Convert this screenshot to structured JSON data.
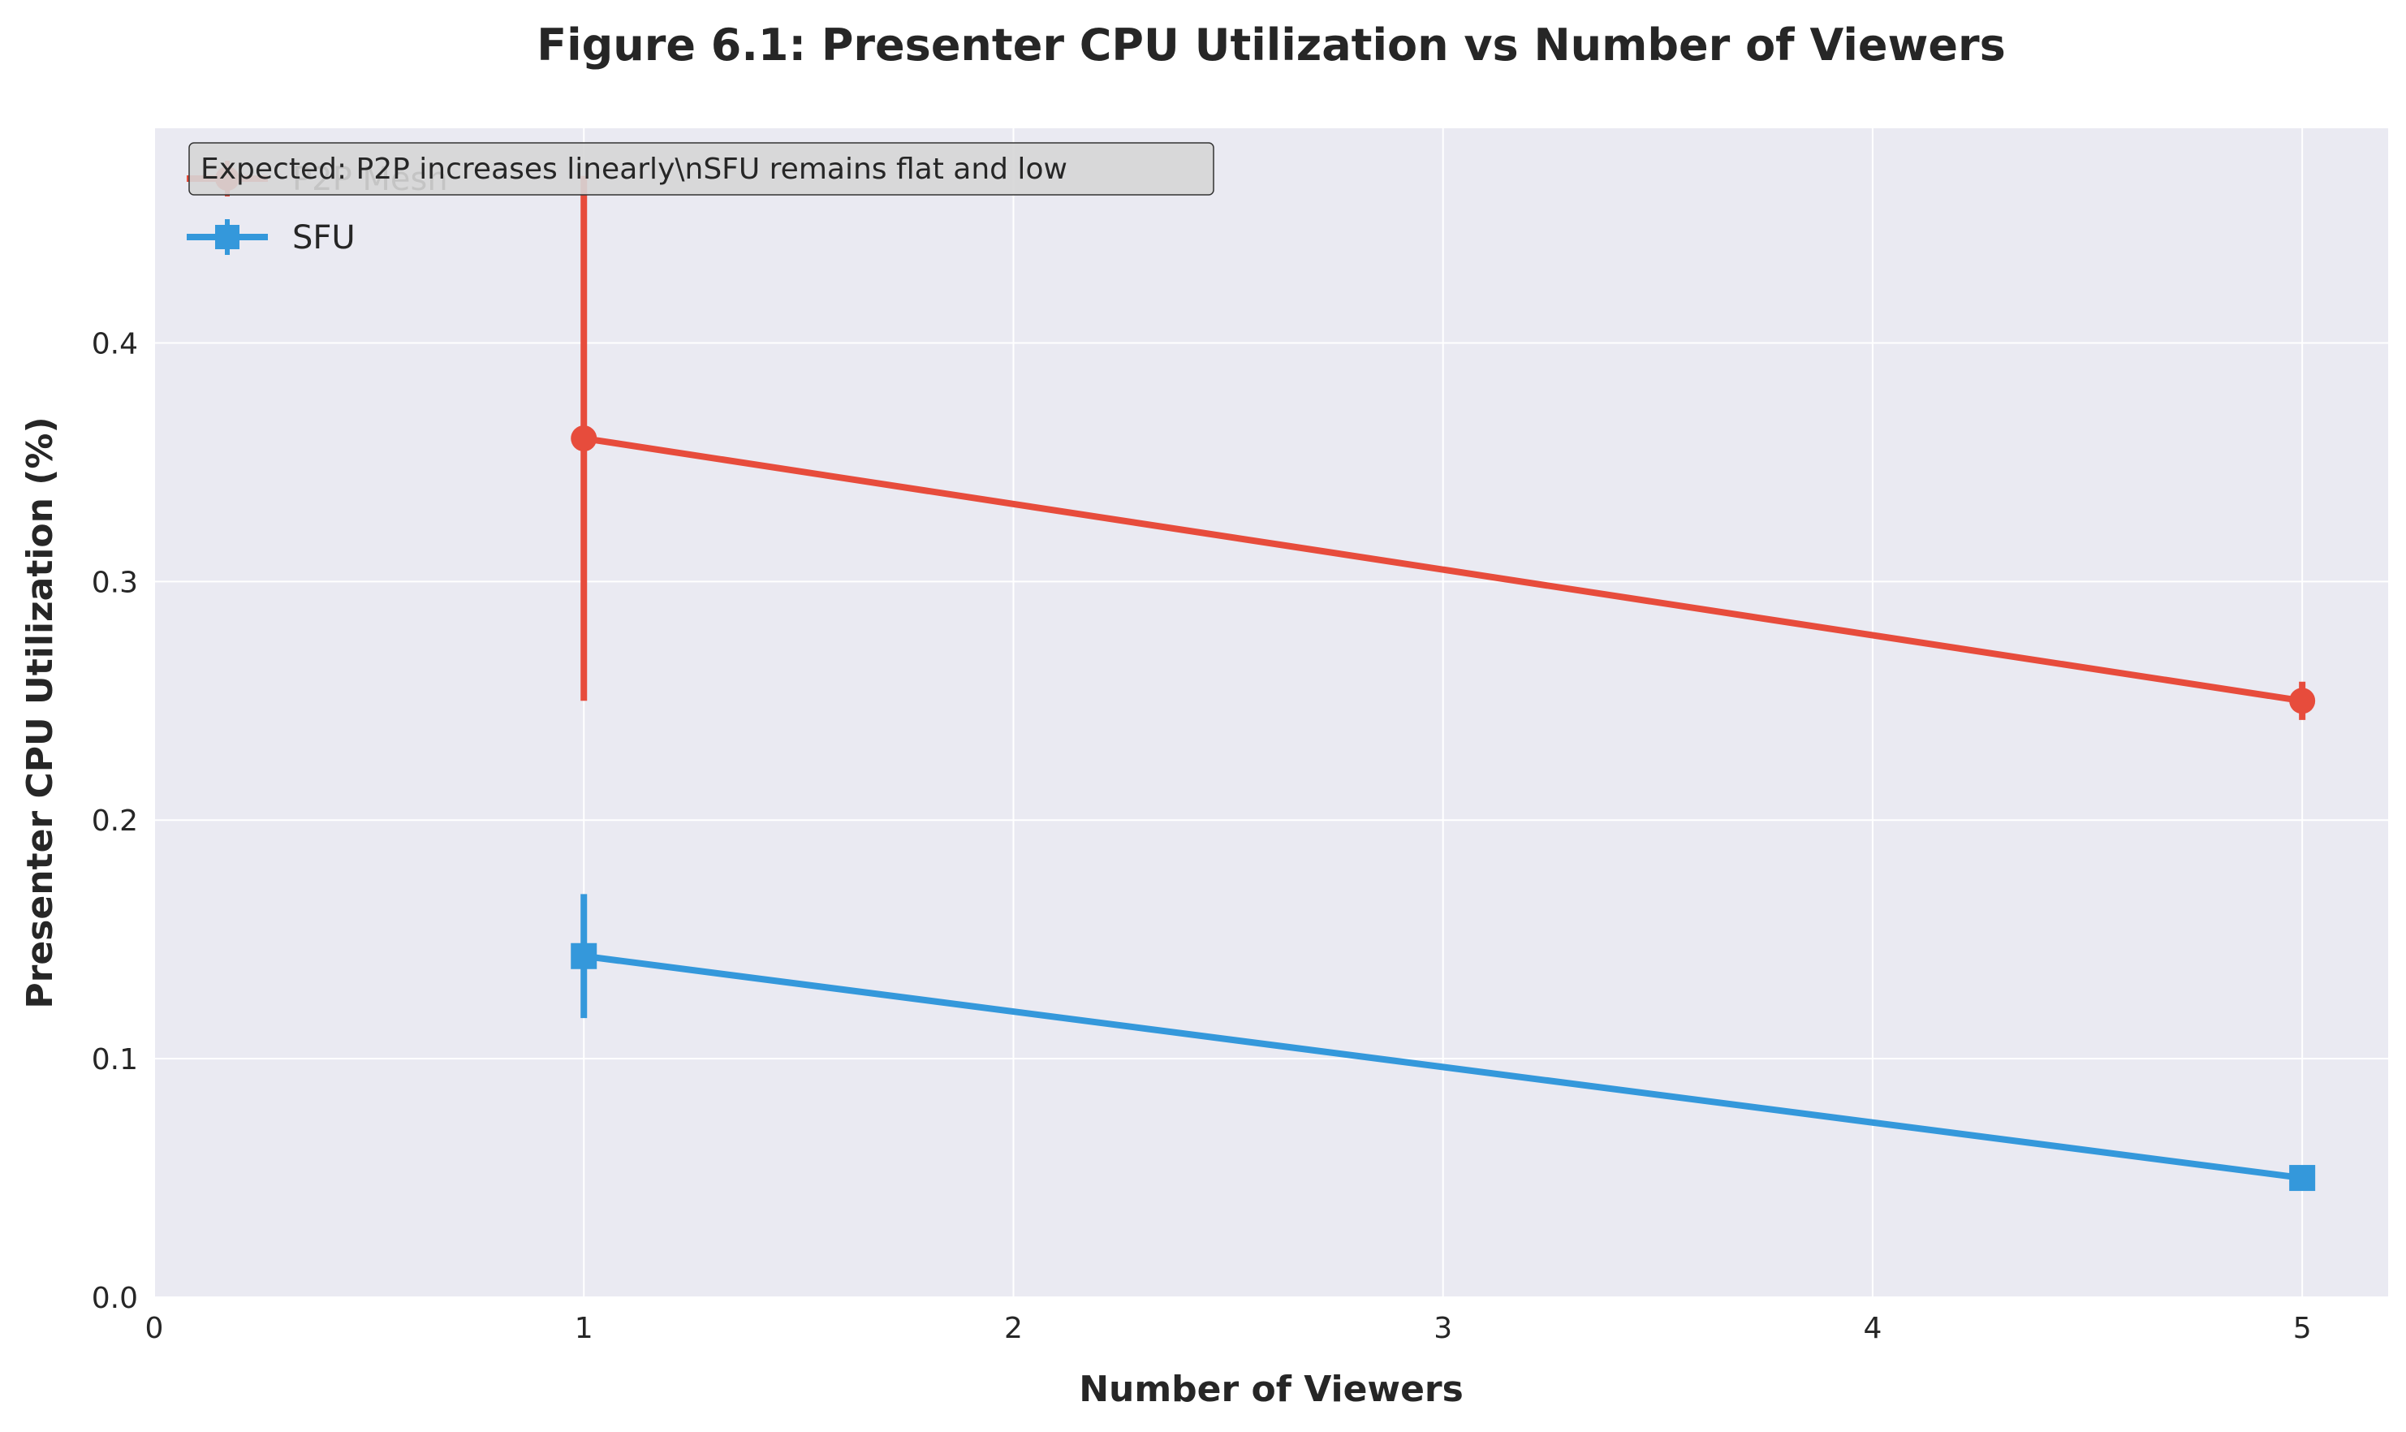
{
  "chart_data": {
    "type": "line",
    "title": "Figure 6.1: Presenter CPU Utilization vs Number of Viewers",
    "xlabel": "Number of Viewers",
    "ylabel": "Presenter CPU Utilization (%)",
    "xlim": [
      0,
      5.2
    ],
    "ylim": [
      0,
      0.49
    ],
    "xticks": [
      0,
      1,
      2,
      3,
      4,
      5
    ],
    "xtick_labels": [
      "0",
      "1",
      "2",
      "3",
      "4",
      "5"
    ],
    "yticks": [
      0.0,
      0.1,
      0.2,
      0.3,
      0.4
    ],
    "ytick_labels": [
      "0.0",
      "0.1",
      "0.2",
      "0.3",
      "0.4"
    ],
    "grid": true,
    "legend_position": "top-left",
    "annotation": "Expected: P2P increases linearly\\nSFU remains flat and low",
    "series": [
      {
        "name": "P2P Mesh",
        "color": "#e74c3c",
        "marker": "circle",
        "x": [
          1,
          5
        ],
        "y": [
          0.36,
          0.25
        ],
        "yerr": [
          0.11,
          0.008
        ]
      },
      {
        "name": "SFU",
        "color": "#3498db",
        "marker": "square",
        "x": [
          1,
          5
        ],
        "y": [
          0.143,
          0.05
        ],
        "yerr": [
          0.026,
          0.002
        ]
      }
    ]
  }
}
